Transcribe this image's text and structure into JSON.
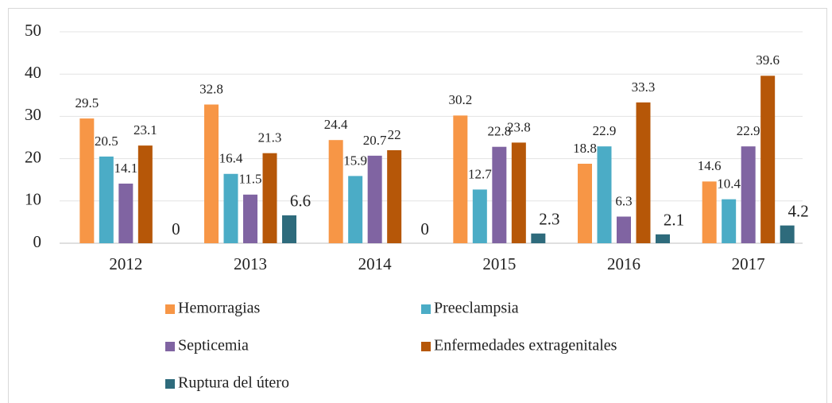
{
  "chart_data": {
    "type": "bar",
    "categories": [
      "2012",
      "2013",
      "2014",
      "2015",
      "2016",
      "2017"
    ],
    "series": [
      {
        "name": "Hemorragias",
        "color": "#f79646",
        "values": [
          29.5,
          32.8,
          24.4,
          30.2,
          18.8,
          14.6
        ]
      },
      {
        "name": "Preeclampsia",
        "color": "#4bacc6",
        "values": [
          20.5,
          16.4,
          15.9,
          12.7,
          22.9,
          10.4
        ]
      },
      {
        "name": "Septicemia",
        "color": "#8064a2",
        "values": [
          14.1,
          11.5,
          20.7,
          22.8,
          6.3,
          22.9
        ]
      },
      {
        "name": "Enfermedades extragenitales",
        "color": "#b65708",
        "values": [
          23.1,
          21.3,
          22,
          23.8,
          33.3,
          39.6
        ]
      },
      {
        "name": "Ruptura del útero",
        "color": "#2e6b7c",
        "values": [
          0,
          6.6,
          0,
          2.3,
          2.1,
          4.2
        ]
      }
    ],
    "ylim": [
      0,
      50
    ],
    "yticks": [
      0,
      10,
      20,
      30,
      40,
      50
    ],
    "grid": true,
    "legend": "bottom"
  }
}
